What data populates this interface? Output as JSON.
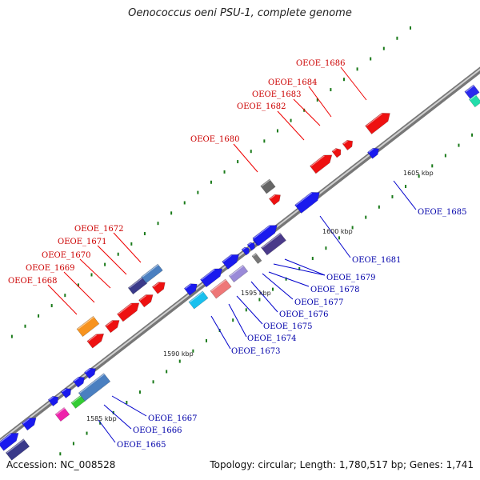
{
  "title": "Oenococcus oeni PSU-1, complete genome",
  "footer": {
    "accession": "Accession: NC_008528",
    "summary": "Topology: circular; Length: 1,780,517 bp; Genes: 1,741"
  },
  "colors": {
    "backbone": "#8a8a8a",
    "tick": "#1a7a1a",
    "label_top": "#cc0000",
    "label_bottom": "#0000aa",
    "leader_top": "#ee0000",
    "leader_bottom": "#0000cc"
  },
  "scale_labels": [
    {
      "text": "1585 kbp"
    },
    {
      "text": "1590 kbp"
    },
    {
      "text": "1595 kbp"
    },
    {
      "text": "1600 kbp"
    },
    {
      "text": "1605 kbp"
    }
  ],
  "top_labels": [
    {
      "text": "OEOE_1668"
    },
    {
      "text": "OEOE_1669"
    },
    {
      "text": "OEOE_1670"
    },
    {
      "text": "OEOE_1671"
    },
    {
      "text": "OEOE_1672"
    },
    {
      "text": "OEOE_1680"
    },
    {
      "text": "OEOE_1682"
    },
    {
      "text": "OEOE_1683"
    },
    {
      "text": "OEOE_1684"
    },
    {
      "text": "OEOE_1686"
    }
  ],
  "bottom_labels": [
    {
      "text": "OEOE_1665"
    },
    {
      "text": "OEOE_1666"
    },
    {
      "text": "OEOE_1667"
    },
    {
      "text": "OEOE_1673"
    },
    {
      "text": "OEOE_1674"
    },
    {
      "text": "OEOE_1675"
    },
    {
      "text": "OEOE_1676"
    },
    {
      "text": "OEOE_1677"
    },
    {
      "text": "OEOE_1678"
    },
    {
      "text": "OEOE_1679"
    },
    {
      "text": "OEOE_1681"
    },
    {
      "text": "OEOE_1685"
    }
  ]
}
